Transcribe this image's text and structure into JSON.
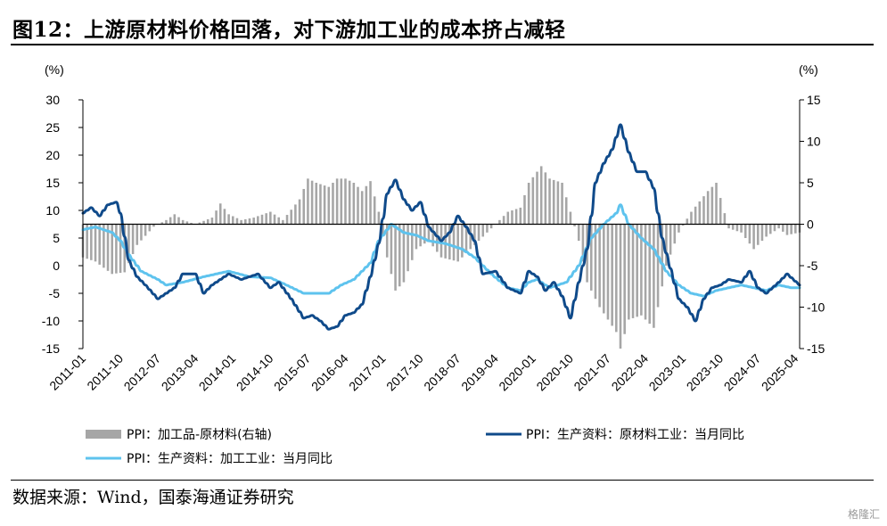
{
  "title": "图12：上游原材料价格回落，对下游加工业的成本挤占减轻",
  "source": "数据来源：Wind，国泰海通证券研究",
  "watermark": "格隆汇",
  "colors": {
    "bar": "#a6a6a6",
    "dark_line": "#0f4a8a",
    "light_line": "#5ec3ee",
    "axis": "#000000"
  },
  "chart_data": {
    "type": "bar",
    "title": "图12：上游原材料价格回落，对下游加工业的成本挤占减轻",
    "left_axis": {
      "unit": "(%)",
      "ylim": [
        -15,
        30
      ],
      "ticks": [
        30,
        25,
        20,
        15,
        10,
        5,
        0,
        -5,
        -10,
        -15
      ]
    },
    "right_axis": {
      "unit": "(%)",
      "ylim": [
        -15,
        15
      ],
      "ticks": [
        15,
        10,
        5,
        0,
        -5,
        -10,
        -15
      ]
    },
    "x_start": "2011-01",
    "x_end": "2025-05",
    "x_tick_labels": [
      "2011-01",
      "2011-10",
      "2012-07",
      "2013-04",
      "2014-01",
      "2014-10",
      "2015-07",
      "2016-04",
      "2017-01",
      "2017-10",
      "2018-07",
      "2019-04",
      "2020-01",
      "2020-10",
      "2021-07",
      "2022-04",
      "2023-01",
      "2023-10",
      "2024-07",
      "2025-04"
    ],
    "grid": false,
    "legend_position": "bottom",
    "series": [
      {
        "name": "PPI：加工品-原材料(右轴)",
        "type": "bar",
        "axis": "right",
        "color": "#a6a6a6",
        "anchors": [
          [
            "2011-01",
            -4
          ],
          [
            "2011-04",
            -4.5
          ],
          [
            "2011-08",
            -6
          ],
          [
            "2011-11",
            -5.8
          ],
          [
            "2012-02",
            -2.5
          ],
          [
            "2012-06",
            -0.3
          ],
          [
            "2012-09",
            0.5
          ],
          [
            "2012-11",
            1.2
          ],
          [
            "2013-01",
            0.5
          ],
          [
            "2013-04",
            0
          ],
          [
            "2013-08",
            0.8
          ],
          [
            "2013-10",
            2.5
          ],
          [
            "2013-12",
            1.2
          ],
          [
            "2014-03",
            0.5
          ],
          [
            "2014-06",
            0.8
          ],
          [
            "2014-10",
            1.5
          ],
          [
            "2015-01",
            0.5
          ],
          [
            "2015-05",
            3
          ],
          [
            "2015-07",
            5.5
          ],
          [
            "2015-09",
            5
          ],
          [
            "2015-12",
            4.5
          ],
          [
            "2016-02",
            5.5
          ],
          [
            "2016-04",
            5.5
          ],
          [
            "2016-06",
            5
          ],
          [
            "2016-08",
            4
          ],
          [
            "2016-10",
            5.2
          ],
          [
            "2016-12",
            1.5
          ],
          [
            "2017-02",
            -4
          ],
          [
            "2017-04",
            -8
          ],
          [
            "2017-06",
            -7
          ],
          [
            "2017-09",
            -3
          ],
          [
            "2017-12",
            -2
          ],
          [
            "2018-03",
            -4
          ],
          [
            "2018-07",
            -4.5
          ],
          [
            "2018-10",
            -3
          ],
          [
            "2019-01",
            -1.5
          ],
          [
            "2019-04",
            0
          ],
          [
            "2019-07",
            1.5
          ],
          [
            "2019-10",
            2
          ],
          [
            "2019-12",
            5
          ],
          [
            "2020-03",
            7
          ],
          [
            "2020-05",
            5.5
          ],
          [
            "2020-08",
            5
          ],
          [
            "2020-10",
            1.5
          ],
          [
            "2020-12",
            -2
          ],
          [
            "2021-02",
            -7
          ],
          [
            "2021-05",
            -10
          ],
          [
            "2021-07",
            -11.5
          ],
          [
            "2021-09",
            -13
          ],
          [
            "2021-10",
            -15
          ],
          [
            "2021-12",
            -11.5
          ],
          [
            "2022-03",
            -11
          ],
          [
            "2022-06",
            -12.5
          ],
          [
            "2022-09",
            -5
          ],
          [
            "2022-12",
            -1
          ],
          [
            "2023-03",
            1.5
          ],
          [
            "2023-07",
            4
          ],
          [
            "2023-09",
            5
          ],
          [
            "2023-12",
            -0.5
          ],
          [
            "2024-03",
            -1
          ],
          [
            "2024-06",
            -3
          ],
          [
            "2024-09",
            -1.5
          ],
          [
            "2024-12",
            -0.5
          ],
          [
            "2025-02",
            -1.3
          ],
          [
            "2025-05",
            -1
          ]
        ]
      },
      {
        "name": "PPI：生产资料：原材料工业：当月同比",
        "type": "line",
        "axis": "left",
        "color": "#0f4a8a",
        "anchors": [
          [
            "2011-01",
            9.5
          ],
          [
            "2011-03",
            10.5
          ],
          [
            "2011-05",
            9
          ],
          [
            "2011-07",
            11
          ],
          [
            "2011-09",
            11.5
          ],
          [
            "2011-10",
            9.5
          ],
          [
            "2011-12",
            1
          ],
          [
            "2012-02",
            -2
          ],
          [
            "2012-04",
            -3.5
          ],
          [
            "2012-07",
            -6
          ],
          [
            "2012-09",
            -5
          ],
          [
            "2012-11",
            -4
          ],
          [
            "2013-01",
            -1.5
          ],
          [
            "2013-04",
            -1.5
          ],
          [
            "2013-06",
            -5
          ],
          [
            "2013-08",
            -3.5
          ],
          [
            "2013-12",
            -1.5
          ],
          [
            "2014-03",
            -2.5
          ],
          [
            "2014-07",
            -1.5
          ],
          [
            "2014-10",
            -4
          ],
          [
            "2014-12",
            -3
          ],
          [
            "2015-03",
            -6
          ],
          [
            "2015-06",
            -9.5
          ],
          [
            "2015-08",
            -9
          ],
          [
            "2015-10",
            -10
          ],
          [
            "2015-12",
            -11.5
          ],
          [
            "2016-02",
            -11
          ],
          [
            "2016-04",
            -9
          ],
          [
            "2016-06",
            -8.5
          ],
          [
            "2016-08",
            -7
          ],
          [
            "2016-10",
            -2
          ],
          [
            "2016-12",
            4
          ],
          [
            "2017-02",
            13
          ],
          [
            "2017-04",
            15.5
          ],
          [
            "2017-06",
            12
          ],
          [
            "2017-08",
            10
          ],
          [
            "2017-10",
            11.5
          ],
          [
            "2017-12",
            7
          ],
          [
            "2018-03",
            4.5
          ],
          [
            "2018-05",
            6
          ],
          [
            "2018-07",
            9
          ],
          [
            "2018-09",
            7
          ],
          [
            "2018-11",
            4.5
          ],
          [
            "2019-01",
            -1.5
          ],
          [
            "2019-04",
            -1
          ],
          [
            "2019-07",
            -4
          ],
          [
            "2019-10",
            -5
          ],
          [
            "2019-12",
            -1
          ],
          [
            "2020-02",
            -2
          ],
          [
            "2020-04",
            -4.5
          ],
          [
            "2020-06",
            -3
          ],
          [
            "2020-08",
            -5.5
          ],
          [
            "2020-10",
            -9.5
          ],
          [
            "2020-12",
            -3
          ],
          [
            "2021-02",
            3
          ],
          [
            "2021-04",
            15
          ],
          [
            "2021-06",
            18.5
          ],
          [
            "2021-08",
            21
          ],
          [
            "2021-10",
            25.5
          ],
          [
            "2021-12",
            20.5
          ],
          [
            "2022-02",
            17
          ],
          [
            "2022-04",
            17
          ],
          [
            "2022-06",
            14
          ],
          [
            "2022-08",
            5
          ],
          [
            "2022-10",
            -0.5
          ],
          [
            "2022-12",
            -6
          ],
          [
            "2023-02",
            -7.5
          ],
          [
            "2023-04",
            -10
          ],
          [
            "2023-06",
            -6
          ],
          [
            "2023-08",
            -4
          ],
          [
            "2023-10",
            -3.5
          ],
          [
            "2023-12",
            -2.5
          ],
          [
            "2024-03",
            -3
          ],
          [
            "2024-05",
            -1
          ],
          [
            "2024-07",
            -4
          ],
          [
            "2024-09",
            -5
          ],
          [
            "2024-12",
            -3
          ],
          [
            "2025-02",
            -1.5
          ],
          [
            "2025-05",
            -3.5
          ]
        ]
      },
      {
        "name": "PPI：生产资料：加工工业：当月同比",
        "type": "line",
        "axis": "left",
        "color": "#5ec3ee",
        "anchors": [
          [
            "2011-01",
            6.5
          ],
          [
            "2011-04",
            7
          ],
          [
            "2011-08",
            6
          ],
          [
            "2011-10",
            4.5
          ],
          [
            "2011-12",
            2
          ],
          [
            "2012-03",
            -1
          ],
          [
            "2012-07",
            -2.5
          ],
          [
            "2012-09",
            -3.5
          ],
          [
            "2013-01",
            -3
          ],
          [
            "2013-06",
            -2
          ],
          [
            "2013-12",
            -1
          ],
          [
            "2014-05",
            -2
          ],
          [
            "2014-10",
            -2.2
          ],
          [
            "2015-01",
            -3.2
          ],
          [
            "2015-06",
            -5
          ],
          [
            "2015-12",
            -5
          ],
          [
            "2016-03",
            -3.5
          ],
          [
            "2016-06",
            -2.5
          ],
          [
            "2016-10",
            0.5
          ],
          [
            "2016-12",
            4.5
          ],
          [
            "2017-03",
            7.5
          ],
          [
            "2017-06",
            6
          ],
          [
            "2017-09",
            5.5
          ],
          [
            "2017-12",
            4.5
          ],
          [
            "2018-04",
            4
          ],
          [
            "2018-08",
            3
          ],
          [
            "2018-11",
            1.5
          ],
          [
            "2019-03",
            -1.5
          ],
          [
            "2019-07",
            -4
          ],
          [
            "2019-10",
            -4.5
          ],
          [
            "2019-12",
            -3
          ],
          [
            "2020-02",
            -2.5
          ],
          [
            "2020-05",
            -4
          ],
          [
            "2020-09",
            -3
          ],
          [
            "2020-12",
            0
          ],
          [
            "2021-03",
            5
          ],
          [
            "2021-06",
            7.5
          ],
          [
            "2021-09",
            9.5
          ],
          [
            "2021-10",
            11
          ],
          [
            "2021-12",
            7.5
          ],
          [
            "2022-03",
            5
          ],
          [
            "2022-06",
            3
          ],
          [
            "2022-09",
            -1
          ],
          [
            "2022-12",
            -3.5
          ],
          [
            "2023-03",
            -5
          ],
          [
            "2023-06",
            -5.5
          ],
          [
            "2023-09",
            -4.5
          ],
          [
            "2023-12",
            -4
          ],
          [
            "2024-03",
            -3.5
          ],
          [
            "2024-06",
            -4
          ],
          [
            "2024-09",
            -4.5
          ],
          [
            "2024-12",
            -3.5
          ],
          [
            "2025-03",
            -4
          ],
          [
            "2025-05",
            -4
          ]
        ]
      }
    ]
  }
}
